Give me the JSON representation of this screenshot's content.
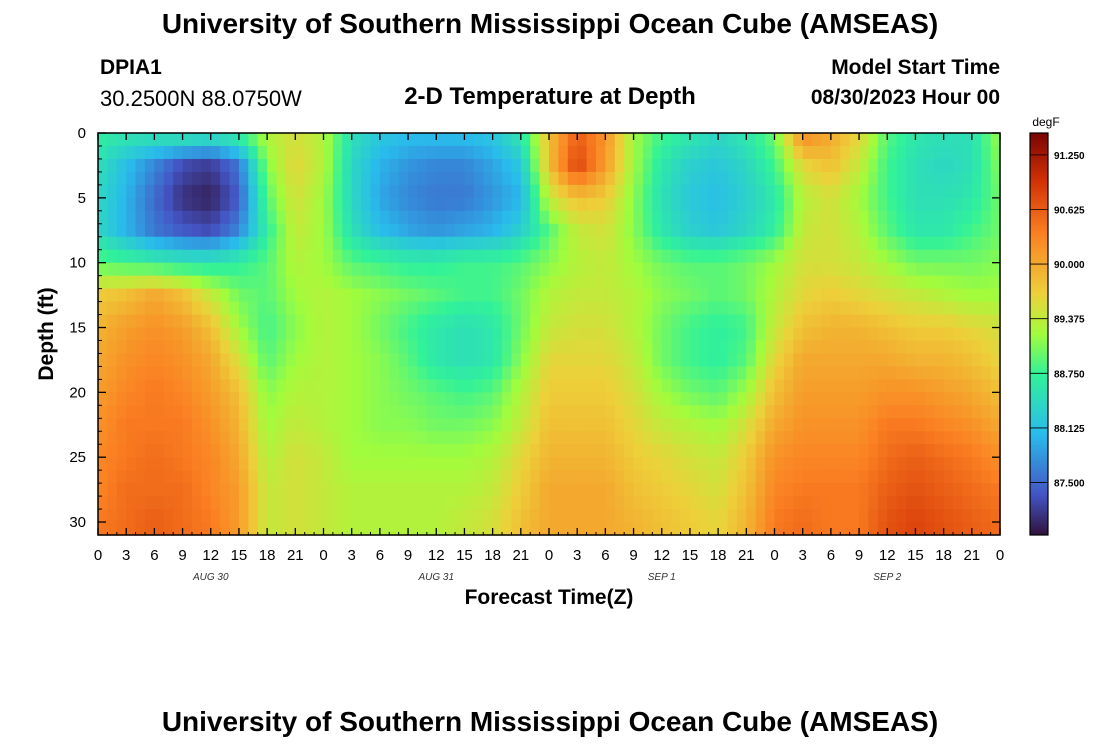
{
  "header": {
    "title": "University of Southern Mississippi Ocean Cube (AMSEAS)",
    "station": "DPIA1",
    "coords": "30.2500N  88.0750W",
    "subtitle": "2-D Temperature at Depth",
    "model_start_label": "Model Start Time",
    "model_start_value": "08/30/2023 Hour 00"
  },
  "footer": {
    "title": "University of Southern Mississippi Ocean Cube (AMSEAS)"
  },
  "chart_data": {
    "type": "heatmap",
    "title": "2-D Temperature at Depth",
    "xlabel": "Forecast Time(Z)",
    "ylabel": "Depth (ft)",
    "x_tick_labels": [
      "0",
      "3",
      "6",
      "9",
      "12",
      "15",
      "18",
      "21",
      "0",
      "3",
      "6",
      "9",
      "12",
      "15",
      "18",
      "21",
      "0",
      "3",
      "6",
      "9",
      "12",
      "15",
      "18",
      "21",
      "0",
      "3",
      "6",
      "9",
      "12",
      "15",
      "18",
      "21",
      "0"
    ],
    "x_range_hours": [
      0,
      96
    ],
    "date_labels": [
      {
        "label": "AUG 30",
        "hour": 12
      },
      {
        "label": "AUG 31",
        "hour": 36
      },
      {
        "label": "SEP 1",
        "hour": 60
      },
      {
        "label": "SEP 2",
        "hour": 84
      }
    ],
    "y_range_ft": [
      0,
      31
    ],
    "y_ticks": [
      0,
      5,
      10,
      15,
      20,
      25,
      30
    ],
    "y_tick_labels": [
      "0",
      "5",
      "10",
      "15",
      "20",
      "25",
      "30"
    ],
    "colorbar": {
      "unit": "degF",
      "range": [
        86.9,
        91.5
      ],
      "tick_values": [
        87.5,
        88.125,
        88.75,
        89.375,
        90.0,
        90.625,
        91.25
      ],
      "tick_labels": [
        "87.500",
        "88.125",
        "88.750",
        "89.375",
        "90.000",
        "90.625",
        "91.250"
      ]
    },
    "grid_depths_ft": [
      0,
      2.5,
      5,
      7.5,
      10,
      12.5,
      15,
      17.5,
      20,
      22.5,
      25,
      27.5,
      30,
      31
    ],
    "grid_hours": [
      0,
      3,
      6,
      9,
      12,
      15,
      18,
      21,
      24,
      27,
      30,
      33,
      36,
      39,
      42,
      45,
      48,
      51,
      54,
      57,
      60,
      63,
      66,
      69,
      72,
      75,
      78,
      81,
      84,
      87,
      90,
      93,
      96
    ],
    "temperatures_degF": [
      [
        88.7,
        88.6,
        88.6,
        88.7,
        88.6,
        88.8,
        89.3,
        89.5,
        89.3,
        88.5,
        88.2,
        88.1,
        88.1,
        88.1,
        88.2,
        88.6,
        89.8,
        90.6,
        90.2,
        89.2,
        88.8,
        88.6,
        88.4,
        88.6,
        89.0,
        90.3,
        90.0,
        89.6,
        88.9,
        88.6,
        88.5,
        88.5,
        89.2
      ],
      [
        88.5,
        88.1,
        87.7,
        87.3,
        87.2,
        87.6,
        89.1,
        89.6,
        89.3,
        88.4,
        88.0,
        87.8,
        87.7,
        87.7,
        87.9,
        88.2,
        89.8,
        90.8,
        90.1,
        89.2,
        88.6,
        88.3,
        88.2,
        88.4,
        88.8,
        89.6,
        89.8,
        89.4,
        88.8,
        88.5,
        88.4,
        88.5,
        89.1
      ],
      [
        88.4,
        88.0,
        87.5,
        87.1,
        87.0,
        87.4,
        88.9,
        89.5,
        89.2,
        88.4,
        87.9,
        87.7,
        87.6,
        87.6,
        87.8,
        88.0,
        89.4,
        89.8,
        89.7,
        89.1,
        88.5,
        88.2,
        88.1,
        88.3,
        88.6,
        89.3,
        89.5,
        89.2,
        88.8,
        88.5,
        88.5,
        88.6,
        89.0
      ],
      [
        88.4,
        88.0,
        87.6,
        87.4,
        87.3,
        87.7,
        88.7,
        89.4,
        89.2,
        88.5,
        88.1,
        87.9,
        87.8,
        87.9,
        88.0,
        88.3,
        88.9,
        89.4,
        89.5,
        89.1,
        88.6,
        88.3,
        88.2,
        88.4,
        88.7,
        89.4,
        89.5,
        89.3,
        88.9,
        88.6,
        88.6,
        88.8,
        89.0
      ],
      [
        88.9,
        88.8,
        88.7,
        88.6,
        88.6,
        88.7,
        88.9,
        89.3,
        89.2,
        88.9,
        88.8,
        88.7,
        88.7,
        88.8,
        88.8,
        88.9,
        89.1,
        89.3,
        89.4,
        89.2,
        89.0,
        88.9,
        88.9,
        89.0,
        89.2,
        89.5,
        89.5,
        89.4,
        89.2,
        89.0,
        89.0,
        89.0,
        89.1
      ],
      [
        89.7,
        89.8,
        90.0,
        89.8,
        89.4,
        89.0,
        88.9,
        89.2,
        89.3,
        89.2,
        89.1,
        89.0,
        88.9,
        88.8,
        88.8,
        89.0,
        89.3,
        89.4,
        89.4,
        89.3,
        89.1,
        89.0,
        88.9,
        89.0,
        89.3,
        89.6,
        89.7,
        89.6,
        89.5,
        89.4,
        89.3,
        89.2,
        89.2
      ],
      [
        89.9,
        90.1,
        90.2,
        90.1,
        89.8,
        89.2,
        88.8,
        89.1,
        89.3,
        89.2,
        89.0,
        88.8,
        88.6,
        88.5,
        88.6,
        89.0,
        89.4,
        89.5,
        89.5,
        89.3,
        89.0,
        88.8,
        88.7,
        88.8,
        89.4,
        89.8,
        89.9,
        89.9,
        89.8,
        89.7,
        89.7,
        89.6,
        89.5
      ],
      [
        90.0,
        90.2,
        90.3,
        90.2,
        90.0,
        89.5,
        88.9,
        89.2,
        89.3,
        89.2,
        89.1,
        88.9,
        88.6,
        88.5,
        88.6,
        89.1,
        89.6,
        89.6,
        89.6,
        89.4,
        89.0,
        88.8,
        88.7,
        88.9,
        89.6,
        90.0,
        90.0,
        90.0,
        90.0,
        89.9,
        89.9,
        89.8,
        89.6
      ],
      [
        90.1,
        90.3,
        90.4,
        90.3,
        90.1,
        89.8,
        89.1,
        89.3,
        89.3,
        89.2,
        89.1,
        89.0,
        88.9,
        88.8,
        88.9,
        89.3,
        89.7,
        89.7,
        89.7,
        89.5,
        89.2,
        89.0,
        88.9,
        89.2,
        89.8,
        90.1,
        90.1,
        90.1,
        90.2,
        90.2,
        90.1,
        90.0,
        89.8
      ],
      [
        90.2,
        90.4,
        90.4,
        90.4,
        90.2,
        89.9,
        89.2,
        89.4,
        89.3,
        89.2,
        89.1,
        89.1,
        89.0,
        89.0,
        89.1,
        89.4,
        89.8,
        89.8,
        89.8,
        89.6,
        89.4,
        89.3,
        89.2,
        89.5,
        90.0,
        90.2,
        90.2,
        90.2,
        90.4,
        90.4,
        90.3,
        90.2,
        90.0
      ],
      [
        90.3,
        90.4,
        90.5,
        90.4,
        90.3,
        90.0,
        89.3,
        89.5,
        89.4,
        89.2,
        89.2,
        89.2,
        89.2,
        89.2,
        89.3,
        89.6,
        89.9,
        89.9,
        89.9,
        89.7,
        89.6,
        89.5,
        89.4,
        89.7,
        90.2,
        90.3,
        90.3,
        90.3,
        90.5,
        90.6,
        90.5,
        90.4,
        90.2
      ],
      [
        90.3,
        90.5,
        90.5,
        90.5,
        90.3,
        90.1,
        89.4,
        89.5,
        89.4,
        89.3,
        89.3,
        89.3,
        89.3,
        89.3,
        89.4,
        89.7,
        90.0,
        90.0,
        90.0,
        89.8,
        89.7,
        89.6,
        89.5,
        89.8,
        90.3,
        90.4,
        90.4,
        90.4,
        90.6,
        90.7,
        90.6,
        90.5,
        90.4
      ],
      [
        90.4,
        90.5,
        90.6,
        90.5,
        90.4,
        90.1,
        89.4,
        89.5,
        89.4,
        89.3,
        89.3,
        89.3,
        89.3,
        89.4,
        89.5,
        89.8,
        90.0,
        90.0,
        90.0,
        89.9,
        89.8,
        89.7,
        89.6,
        89.9,
        90.4,
        90.5,
        90.4,
        90.4,
        90.7,
        90.8,
        90.7,
        90.6,
        90.5
      ],
      [
        90.4,
        90.5,
        90.6,
        90.5,
        90.4,
        90.1,
        89.4,
        89.5,
        89.4,
        89.3,
        89.3,
        89.3,
        89.3,
        89.4,
        89.5,
        89.8,
        90.0,
        90.0,
        90.0,
        89.9,
        89.8,
        89.7,
        89.6,
        89.9,
        90.4,
        90.5,
        90.4,
        90.4,
        90.7,
        90.8,
        90.7,
        90.6,
        90.5
      ]
    ]
  }
}
